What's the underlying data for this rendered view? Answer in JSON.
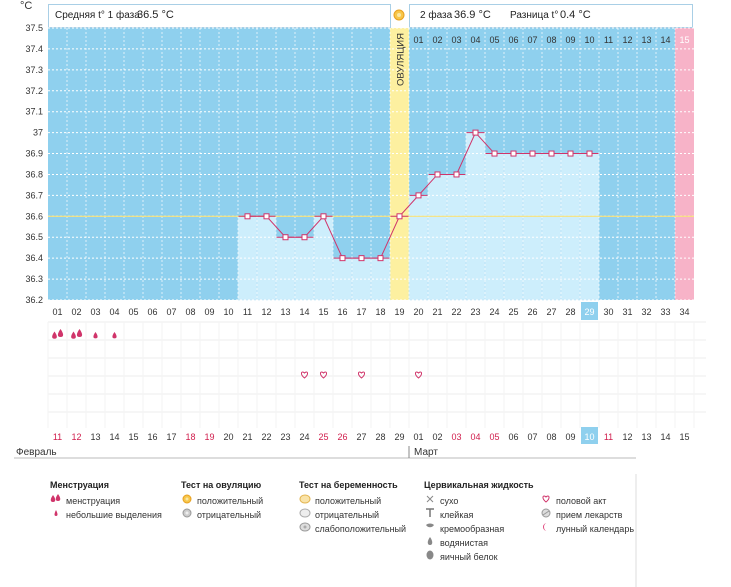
{
  "header": {
    "y_unit": "°С",
    "phase1_label": "Средняя t° 1 фаза",
    "phase1_value": "36.5 °С",
    "phase2_label": "2 фаза",
    "phase2_value": "36.9 °С",
    "diff_label": "Разница t°",
    "diff_value": "0.4 °С"
  },
  "ovulation_label": "ОВУЛЯЦИЯ",
  "chart_data": {
    "type": "line",
    "title": "",
    "xlabel": "",
    "ylabel": "°С",
    "ylim": [
      36.2,
      37.5
    ],
    "yticks": [
      "37.5",
      "37.4",
      "37.3",
      "37.2",
      "37.1",
      "37",
      "36.9",
      "36.8",
      "36.7",
      "36.6",
      "36.5",
      "36.4",
      "36.3",
      "36.2"
    ],
    "cycle_days": [
      "01",
      "02",
      "03",
      "04",
      "05",
      "06",
      "07",
      "08",
      "09",
      "10",
      "11",
      "12",
      "13",
      "14",
      "15",
      "16",
      "17",
      "18",
      "19",
      "20",
      "21",
      "22",
      "23",
      "24",
      "25",
      "26",
      "27",
      "28",
      "29",
      "30",
      "31",
      "32",
      "33",
      "34"
    ],
    "phase2_days": [
      "01",
      "02",
      "03",
      "04",
      "05",
      "06",
      "07",
      "08",
      "09",
      "10",
      "11",
      "12",
      "13",
      "14",
      "15"
    ],
    "calendar_days": [
      "11",
      "12",
      "13",
      "14",
      "15",
      "16",
      "17",
      "18",
      "19",
      "20",
      "21",
      "22",
      "23",
      "24",
      "25",
      "26",
      "27",
      "28",
      "29",
      "01",
      "02",
      "03",
      "04",
      "05",
      "06",
      "07",
      "08",
      "09",
      "10",
      "11",
      "12",
      "13",
      "14",
      "15"
    ],
    "calendar_red_days": [
      0,
      1,
      7,
      8,
      14,
      15,
      21,
      22,
      23,
      29
    ],
    "series": [
      {
        "values": [
          null,
          null,
          null,
          null,
          null,
          null,
          null,
          null,
          null,
          null,
          36.6,
          36.6,
          36.5,
          36.5,
          36.6,
          36.4,
          36.4,
          36.4,
          36.6,
          36.7,
          36.8,
          36.8,
          37.0,
          36.9,
          36.9,
          36.9,
          36.9,
          36.9,
          36.9,
          null,
          null,
          null,
          null,
          null
        ]
      }
    ],
    "coverline": 36.6,
    "ovulation_day": 19,
    "today_day": 29,
    "pink_day": 34,
    "months": [
      {
        "name": "Февраль",
        "start_day": 1
      },
      {
        "name": "Март",
        "start_day": 20
      }
    ],
    "grid": true
  },
  "markers": {
    "menstruation_heavy_days": [
      1,
      2
    ],
    "menstruation_light_days": [
      3,
      4
    ],
    "intercourse_days": [
      14,
      15,
      17,
      20
    ]
  },
  "legend": {
    "groups": [
      {
        "title": "Менструация",
        "items": [
          {
            "icon": "drop-pair-icon",
            "label": "менструация"
          },
          {
            "icon": "drop-small-icon",
            "label": "небольшие выделения"
          }
        ]
      },
      {
        "title": "Тест на овуляцию",
        "items": [
          {
            "icon": "sun-positive-icon",
            "label": "положительный"
          },
          {
            "icon": "sun-negative-icon",
            "label": "отрицательный"
          }
        ]
      },
      {
        "title": "Тест на беременность",
        "items": [
          {
            "icon": "preg-positive-icon",
            "label": "положительный"
          },
          {
            "icon": "preg-negative-icon",
            "label": "отрицательный"
          },
          {
            "icon": "preg-weak-icon",
            "label": "слабоположительный"
          }
        ]
      },
      {
        "title": "Цервикальная жидкость",
        "items": [
          {
            "icon": "cross-icon",
            "label": "сухо"
          },
          {
            "icon": "sticky-icon",
            "label": "клейкая"
          },
          {
            "icon": "creamy-icon",
            "label": "кремообразная"
          },
          {
            "icon": "watery-icon",
            "label": "водянистая"
          },
          {
            "icon": "egg-white-icon",
            "label": "яичный белок"
          }
        ]
      },
      {
        "title": "",
        "items": [
          {
            "icon": "heart-icon",
            "label": "половой акт"
          },
          {
            "icon": "pill-icon",
            "label": "прием лекарств"
          },
          {
            "icon": "moon-icon",
            "label": "лунный календарь"
          }
        ]
      }
    ]
  },
  "colors": {
    "background": "#8fd0ee",
    "fill": "#cdeefc",
    "line": "#d0346a",
    "ovulation": "#fdf0a0",
    "pink": "#f7b3c8",
    "today": "#8fd0ee",
    "red_text": "#d01d4c"
  }
}
